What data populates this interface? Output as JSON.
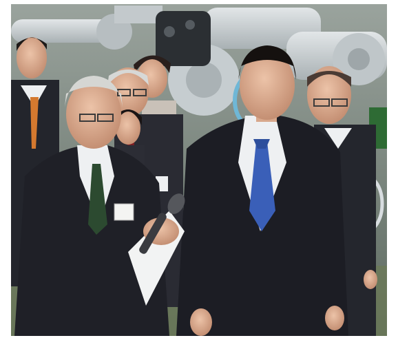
{
  "photo": {
    "subject_icon": "news-photo-factory-tour",
    "colors": {
      "background_factory": "#8b9690",
      "robot_arm": "#c9d0d2",
      "suit_dark": "#1c1d24",
      "shirt_white": "#eef0f2",
      "tie_blue": "#3a5fb8",
      "skin": "#e0b397",
      "floor_green": "#7a8a5a"
    }
  }
}
